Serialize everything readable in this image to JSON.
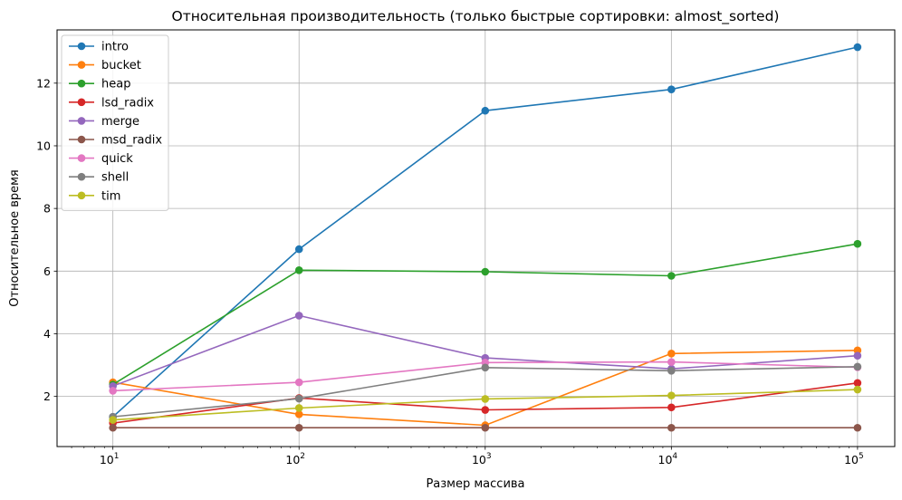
{
  "chart_data": {
    "type": "line",
    "title": "Относительная производительность (только быстрые сортировки: almost_sorted)",
    "xlabel": "Размер массива",
    "ylabel": "Относительное время",
    "xscale": "log",
    "x": [
      10,
      100,
      1000,
      10000,
      100000
    ],
    "x_tick_labels": [
      {
        "base": "10",
        "exp": "1"
      },
      {
        "base": "10",
        "exp": "2"
      },
      {
        "base": "10",
        "exp": "3"
      },
      {
        "base": "10",
        "exp": "4"
      },
      {
        "base": "10",
        "exp": "5"
      }
    ],
    "y_ticks": [
      2,
      4,
      6,
      8,
      10,
      12
    ],
    "ylim": [
      0.4,
      13.7
    ],
    "grid": true,
    "legend_position": "top-left",
    "series": [
      {
        "name": "intro",
        "color": "#1f77b4",
        "values": [
          1.35,
          6.7,
          11.12,
          11.8,
          13.15
        ]
      },
      {
        "name": "bucket",
        "color": "#ff7f0e",
        "values": [
          2.45,
          1.43,
          1.08,
          3.37,
          3.47
        ]
      },
      {
        "name": "heap",
        "color": "#2ca02c",
        "values": [
          2.38,
          6.03,
          5.98,
          5.85,
          6.87
        ]
      },
      {
        "name": "lsd_radix",
        "color": "#d62728",
        "values": [
          1.15,
          1.95,
          1.57,
          1.65,
          2.43
        ]
      },
      {
        "name": "merge",
        "color": "#9467bd",
        "values": [
          2.33,
          4.58,
          3.23,
          2.88,
          3.3
        ]
      },
      {
        "name": "msd_radix",
        "color": "#8c564b",
        "values": [
          1.0,
          1.0,
          1.0,
          1.0,
          1.0
        ]
      },
      {
        "name": "quick",
        "color": "#e377c2",
        "values": [
          2.18,
          2.45,
          3.08,
          3.1,
          2.93
        ]
      },
      {
        "name": "shell",
        "color": "#7f7f7f",
        "values": [
          1.35,
          1.93,
          2.92,
          2.82,
          2.95
        ]
      },
      {
        "name": "tim",
        "color": "#bcbd22",
        "values": [
          1.25,
          1.63,
          1.92,
          2.03,
          2.22
        ]
      }
    ]
  }
}
